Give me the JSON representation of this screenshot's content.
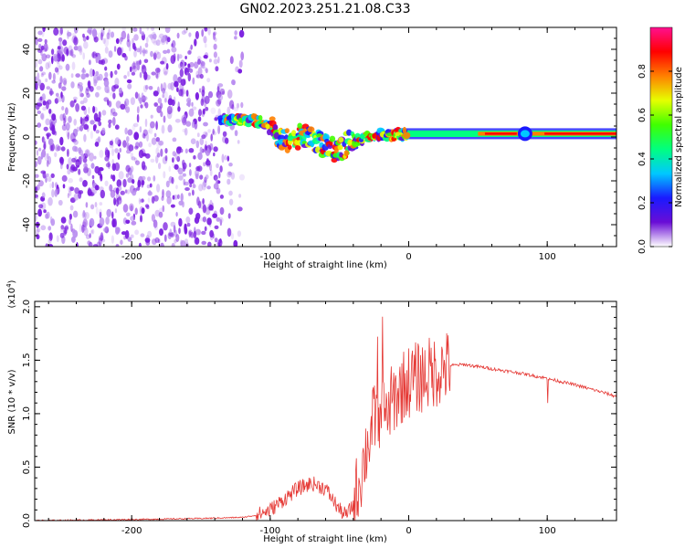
{
  "title": "GN02.2023.251.21.08.C33",
  "colors": {
    "snr_line": "#e53935",
    "axis": "#000000",
    "dots": "#7b1fe0"
  },
  "chart_data": [
    {
      "type": "heatmap",
      "name": "spectrogram",
      "xlabel": "Height of straight line (km)",
      "ylabel": "Frequency (Hz)",
      "xlim": [
        -270,
        150
      ],
      "ylim": [
        -50,
        50
      ],
      "x_ticks": [
        -200,
        -100,
        0,
        100
      ],
      "y_ticks": [
        -40,
        -20,
        0,
        20,
        40
      ],
      "noise_region_x": [
        -270,
        -120
      ],
      "ridge": {
        "x": [
          -135,
          -120,
          -110,
          -100,
          -95,
          -90,
          -85,
          -75,
          -65,
          -55,
          -50,
          -45,
          -40,
          -30,
          -20,
          -10,
          0,
          20,
          50,
          80,
          100,
          150
        ],
        "y": [
          8,
          8,
          7.5,
          6,
          0,
          -2,
          -1,
          1,
          -3,
          -6,
          -7,
          -3,
          -2,
          0,
          1,
          1,
          1.5,
          1.5,
          1.5,
          1.5,
          1.5,
          1.5
        ]
      },
      "colorbar": {
        "label": "Normalized spectral amplitude",
        "range": [
          0,
          1
        ],
        "ticks": [
          "0.0",
          "0.2",
          "0.4",
          "0.6",
          "0.8"
        ],
        "stops": [
          "#ffffff",
          "#6a0dd6",
          "#1a1aff",
          "#00c8ff",
          "#00ff80",
          "#40ff00",
          "#e6ff00",
          "#ff8000",
          "#ff0000",
          "#ff1090"
        ]
      },
      "grid": false
    },
    {
      "type": "line",
      "name": "snr",
      "xlabel": "Height of straight line (km)",
      "ylabel": "SNR (10 * v/v)",
      "y_multiplier": "(x10",
      "y_multiplier_exp": "4",
      "y_multiplier_close": ")",
      "xlim": [
        -270,
        150
      ],
      "ylim": [
        0,
        2.05
      ],
      "x_ticks": [
        -200,
        -100,
        0,
        100
      ],
      "y_ticks": [
        "0.0",
        "0.5",
        "1.0",
        "1.5",
        "2.0"
      ],
      "series": [
        {
          "x": [
            -270,
            -200,
            -150,
            -120,
            -110,
            -100,
            -90,
            -80,
            -70,
            -60,
            -55,
            -50,
            -45,
            -40,
            -35,
            -30,
            -25,
            -20,
            -15,
            -10,
            -5,
            0,
            10,
            20,
            30,
            40,
            50,
            60,
            80,
            100,
            120,
            140,
            150
          ],
          "y": [
            0.0,
            0.01,
            0.02,
            0.03,
            0.05,
            0.1,
            0.2,
            0.3,
            0.35,
            0.3,
            0.2,
            0.1,
            0.05,
            0.15,
            0.4,
            0.7,
            0.95,
            1.0,
            1.05,
            1.15,
            1.25,
            1.3,
            1.35,
            1.4,
            1.45,
            1.46,
            1.44,
            1.42,
            1.38,
            1.33,
            1.27,
            1.2,
            1.16
          ]
        }
      ],
      "grid": false
    }
  ]
}
